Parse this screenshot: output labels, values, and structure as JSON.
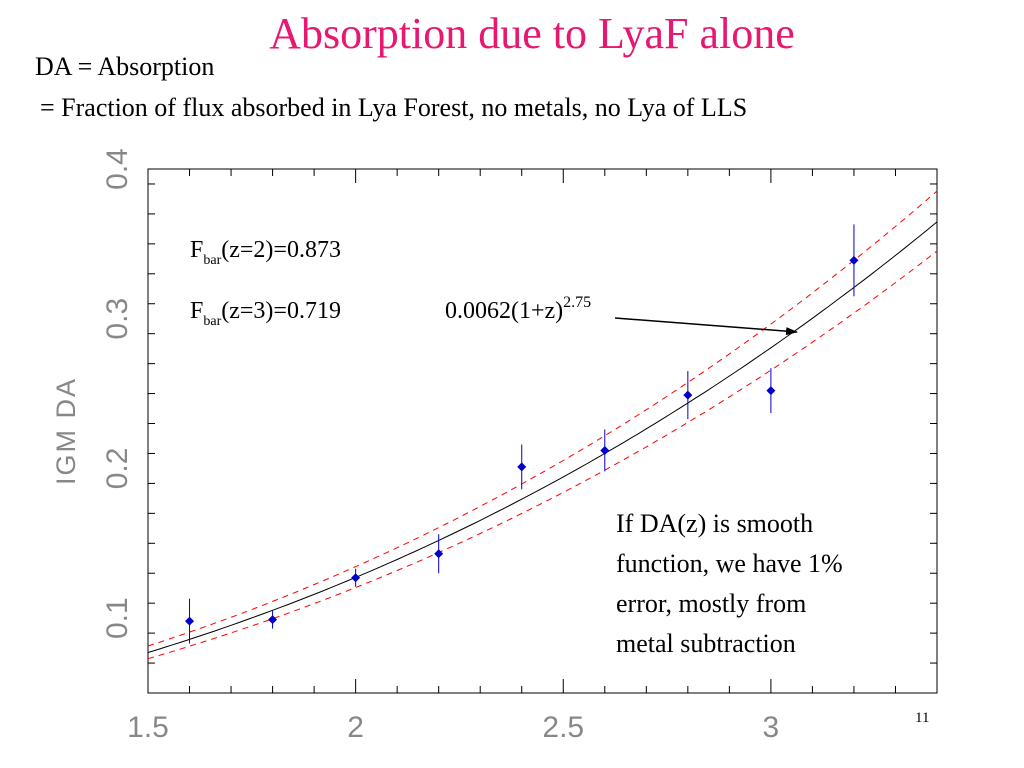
{
  "slide": {
    "title": "Absorption due to LyaF alone",
    "line1": "DA = Absorption",
    "line2": " = Fraction of flux absorbed in Lya Forest, no metals, no Lya of LLS",
    "slide_number": "11"
  },
  "chart_data": {
    "type": "scatter",
    "title": "",
    "xlabel": "",
    "ylabel": "IGM DA",
    "xlim": [
      1.5,
      3.4
    ],
    "ylim": [
      0.05,
      0.4
    ],
    "x_ticks": [
      "1.5",
      "2",
      "2.5",
      "3"
    ],
    "x_tick_values": [
      1.5,
      2,
      2.5,
      3
    ],
    "y_ticks": [
      "0.1",
      "0.2",
      "0.3",
      "0.4"
    ],
    "y_tick_values": [
      0.1,
      0.2,
      0.3,
      0.4
    ],
    "grid": false,
    "series": [
      {
        "type": "points_with_errorbars",
        "color": "#0000cc",
        "points": [
          {
            "x": 1.6,
            "y": 0.098,
            "err": 0.015
          },
          {
            "x": 1.8,
            "y": 0.099,
            "err": 0.006
          },
          {
            "x": 2.0,
            "y": 0.127,
            "err": 0.006
          },
          {
            "x": 2.2,
            "y": 0.143,
            "err": 0.013
          },
          {
            "x": 2.4,
            "y": 0.201,
            "err": 0.015
          },
          {
            "x": 2.6,
            "y": 0.212,
            "err": 0.014
          },
          {
            "x": 2.8,
            "y": 0.249,
            "err": 0.016
          },
          {
            "x": 3.0,
            "y": 0.252,
            "err": 0.015
          },
          {
            "x": 3.2,
            "y": 0.339,
            "err": 0.024
          }
        ]
      },
      {
        "type": "fit_curve",
        "color": "#000000",
        "formula": "0.0062(1+z)^2.75",
        "coefficient": 0.0062,
        "exponent": 2.75
      },
      {
        "type": "fit_bounds",
        "color": "#ff0000",
        "style": "dashed",
        "coefficients": [
          0.00655,
          0.00587
        ],
        "exponent": 2.75
      }
    ],
    "annotations": {
      "fbar_z2": {
        "prefix": "F",
        "subscript": "bar",
        "text": "(z=2)=0.873"
      },
      "fbar_z3": {
        "prefix": "F",
        "subscript": "bar",
        "text": "(z=3)=0.719"
      },
      "fit_label": {
        "base": "0.0062(1+z)",
        "superscript": "2.75"
      },
      "note_lines": [
        "If DA(z) is smooth",
        "function, we have 1%",
        "error, mostly from",
        "metal subtraction"
      ]
    }
  }
}
